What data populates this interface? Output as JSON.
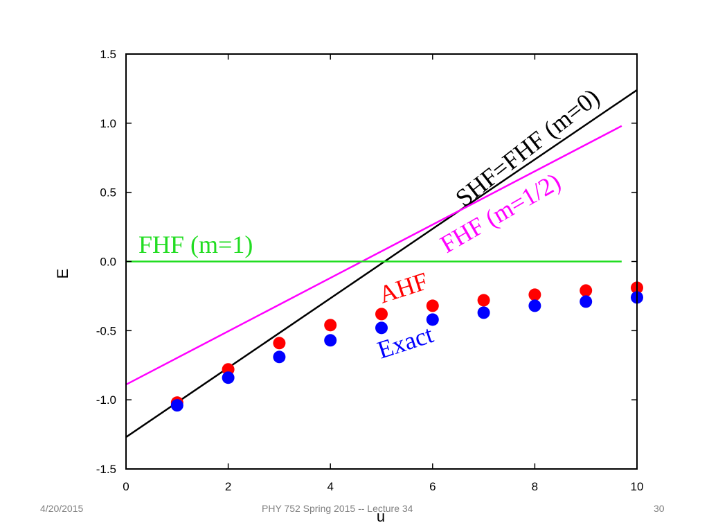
{
  "chart_data": {
    "type": "line+scatter",
    "title": "",
    "xlabel": "u",
    "ylabel": "E",
    "xlim": [
      0,
      10
    ],
    "ylim": [
      -1.5,
      1.5
    ],
    "x_ticks": [
      0,
      2,
      4,
      6,
      8,
      10
    ],
    "x_tick_labels": [
      "0",
      "2",
      "4",
      "6",
      "8",
      "10"
    ],
    "y_ticks": [
      -1.5,
      -1.0,
      -0.5,
      0.0,
      0.5,
      1.0,
      1.5
    ],
    "y_tick_labels": [
      "-1.5",
      "-1.0",
      "-0.5",
      "0.0",
      "0.5",
      "1.0",
      "1.5"
    ],
    "grid": false,
    "lines": [
      {
        "name": "SHF=FHF (m=0)",
        "color": "#000000",
        "x": [
          0,
          10
        ],
        "y": [
          -1.27,
          1.24
        ]
      },
      {
        "name": "FHF (m=1/2)",
        "color": "#ff00ff",
        "x": [
          0,
          9.7
        ],
        "y": [
          -0.89,
          0.98
        ]
      },
      {
        "name": "FHF (m=1)",
        "color": "#22dd22",
        "x": [
          0,
          9.7
        ],
        "y": [
          0.0,
          0.0
        ]
      }
    ],
    "scatter": [
      {
        "name": "AHF",
        "color": "#ff0000",
        "x": [
          1,
          2,
          3,
          4,
          5,
          6,
          7,
          8,
          9,
          10
        ],
        "y": [
          -1.02,
          -0.78,
          -0.59,
          -0.46,
          -0.38,
          -0.32,
          -0.28,
          -0.24,
          -0.21,
          -0.19
        ]
      },
      {
        "name": "Exact",
        "color": "#0000ff",
        "x": [
          1,
          2,
          3,
          4,
          5,
          6,
          7,
          8,
          9,
          10
        ],
        "y": [
          -1.04,
          -0.84,
          -0.69,
          -0.57,
          -0.48,
          -0.42,
          -0.37,
          -0.32,
          -0.29,
          -0.26
        ]
      }
    ],
    "annotations": [
      {
        "name": "SHF=FHF (m=0)",
        "text": "SHF=FHF (m=0)",
        "color": "#000000"
      },
      {
        "name": "FHF (m=1/2)",
        "text": "FHF (m=1/2)",
        "color": "#ff00ff"
      },
      {
        "name": "FHF (m=1)",
        "text": "FHF (m=1)",
        "color": "#22dd22"
      },
      {
        "name": "AHF",
        "text": "AHF",
        "color": "#ff0000"
      },
      {
        "name": "Exact",
        "text": "Exact",
        "color": "#0000ff"
      }
    ]
  },
  "footer": {
    "date": "4/20/2015",
    "title": "PHY 752  Spring 2015 -- Lecture 34",
    "page": "30"
  }
}
